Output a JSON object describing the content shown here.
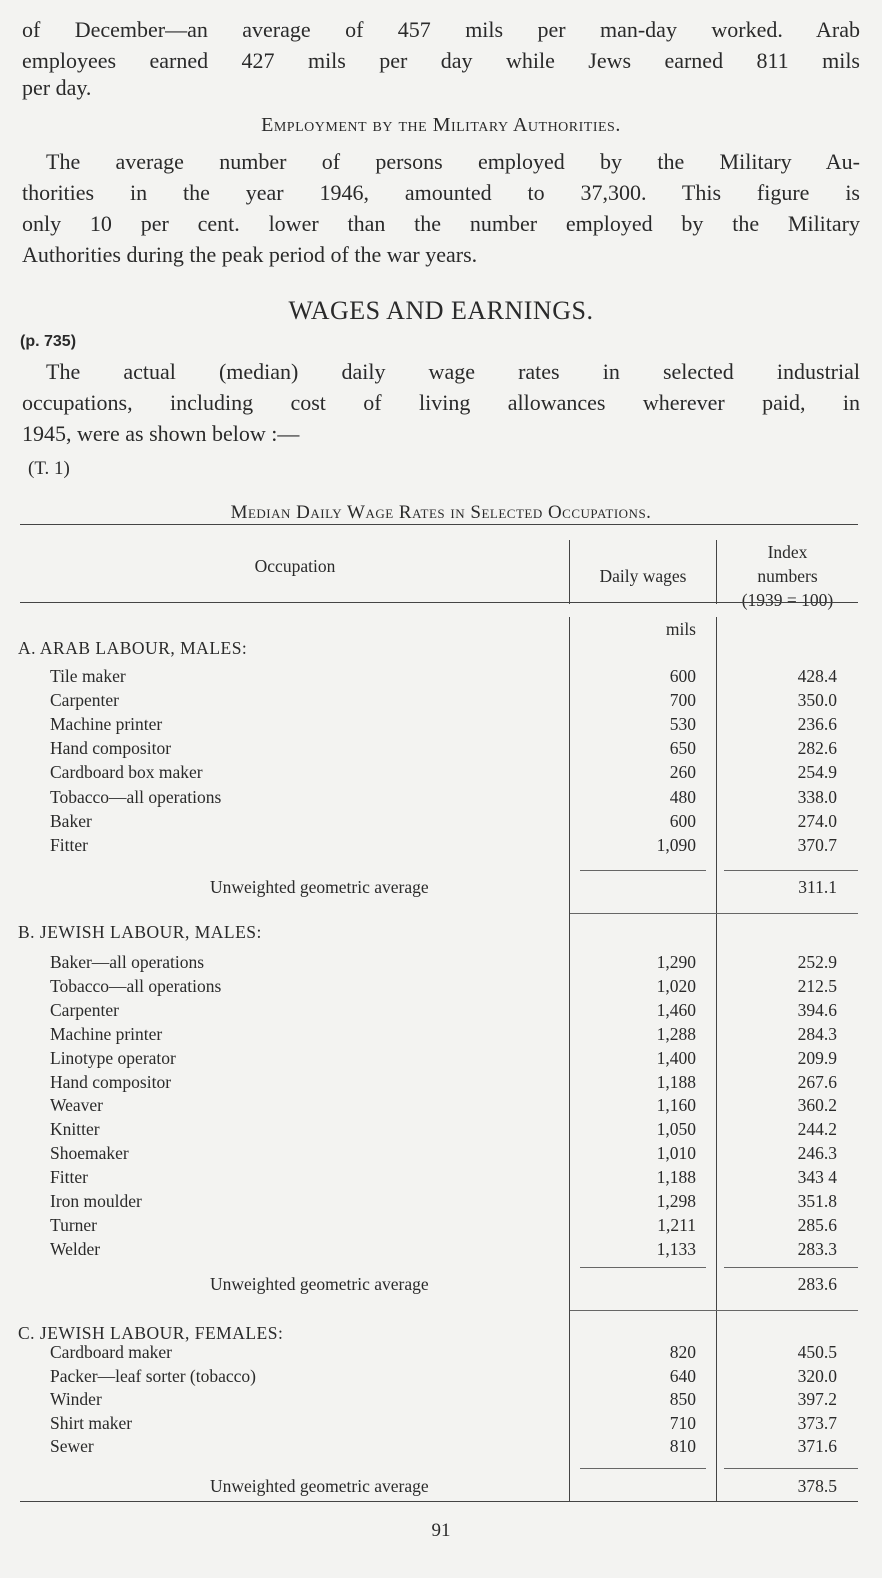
{
  "intro_paragraph": [
    "of December—an average of 457 mils per man-day worked. Arab",
    "employees earned 427 mils per day while Jews earned 811 mils",
    "per day."
  ],
  "military_heading": "Employment by the Military Authorities.",
  "military_paragraph": [
    "The average number of persons employed by the Military Au-",
    "thorities in the year 1946, amounted to 37,300. This figure is",
    "only 10 per cent. lower than the number employed by the Military",
    "Authorities during the peak period of the war years."
  ],
  "wages_heading": "WAGES AND EARNINGS.",
  "page_ref": "(p. 735)",
  "wages_paragraph": [
    "The actual (median) daily wage rates in selected industrial",
    "occupations, including cost of living allowances wherever paid, in",
    "1945, were as shown below :—"
  ],
  "table_ref": "(T. 1)",
  "table": {
    "title": "Median Daily Wage Rates in Selected Occupations.",
    "headers": {
      "occupation": "Occupation",
      "daily_wages": "Daily wages",
      "index_1": "Index",
      "index_2": "numbers",
      "index_3": "(1939 = 100)"
    },
    "unit": "mils",
    "sections": [
      {
        "title": "A. ARAB LABOUR, MALES:",
        "rows": [
          {
            "occupation": "Tile maker",
            "wages": "600",
            "index": "428.4"
          },
          {
            "occupation": "Carpenter",
            "wages": "700",
            "index": "350.0"
          },
          {
            "occupation": "Machine printer",
            "wages": "530",
            "index": "236.6"
          },
          {
            "occupation": "Hand compositor",
            "wages": "650",
            "index": "282.6"
          },
          {
            "occupation": "Cardboard box maker",
            "wages": "260",
            "index": "254.9"
          },
          {
            "occupation": "Tobacco—all operations",
            "wages": "480",
            "index": "338.0"
          },
          {
            "occupation": "Baker",
            "wages": "600",
            "index": "274.0"
          },
          {
            "occupation": "Fitter",
            "wages": "1,090",
            "index": "370.7"
          }
        ],
        "average_label": "Unweighted geometric average",
        "average": "311.1"
      },
      {
        "title": "B. JEWISH LABOUR, MALES:",
        "rows": [
          {
            "occupation": "Baker—all operations",
            "wages": "1,290",
            "index": "252.9"
          },
          {
            "occupation": "Tobacco—all operations",
            "wages": "1,020",
            "index": "212.5"
          },
          {
            "occupation": "Carpenter",
            "wages": "1,460",
            "index": "394.6"
          },
          {
            "occupation": "Machine printer",
            "wages": "1,288",
            "index": "284.3"
          },
          {
            "occupation": "Linotype operator",
            "wages": "1,400",
            "index": "209.9"
          },
          {
            "occupation": "Hand compositor",
            "wages": "1,188",
            "index": "267.6"
          },
          {
            "occupation": "Weaver",
            "wages": "1,160",
            "index": "360.2"
          },
          {
            "occupation": "Knitter",
            "wages": "1,050",
            "index": "244.2"
          },
          {
            "occupation": "Shoemaker",
            "wages": "1,010",
            "index": "246.3"
          },
          {
            "occupation": "Fitter",
            "wages": "1,188",
            "index": "343 4"
          },
          {
            "occupation": "Iron moulder",
            "wages": "1,298",
            "index": "351.8"
          },
          {
            "occupation": "Turner",
            "wages": "1,211",
            "index": "285.6"
          },
          {
            "occupation": "Welder",
            "wages": "1,133",
            "index": "283.3"
          }
        ],
        "average_label": "Unweighted geometric average",
        "average": "283.6"
      },
      {
        "title": "C. JEWISH LABOUR, FEMALES:",
        "rows": [
          {
            "occupation": "Cardboard maker",
            "wages": "820",
            "index": "450.5"
          },
          {
            "occupation": "Packer—leaf sorter (tobacco)",
            "wages": "640",
            "index": "320.0"
          },
          {
            "occupation": "Winder",
            "wages": "850",
            "index": "397.2"
          },
          {
            "occupation": "Shirt maker",
            "wages": "710",
            "index": "373.7"
          },
          {
            "occupation": "Sewer",
            "wages": "810",
            "index": "371.6"
          }
        ],
        "average_label": "Unweighted geometric average",
        "average": "378.5"
      }
    ]
  },
  "page_number": "91"
}
